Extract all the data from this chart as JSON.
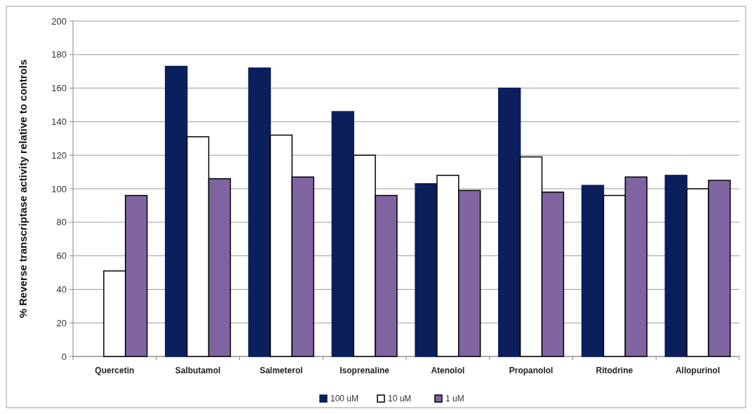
{
  "chart_data": {
    "type": "bar",
    "ylabel": "% Reverse transcriptase activity relative to controls",
    "categories": [
      "Quercetin",
      "Salbutamol",
      "Salmeterol",
      "Isoprenaline",
      "Atenolol",
      "Propanolol",
      "Ritodrine",
      "Allopurinol"
    ],
    "series": [
      {
        "name": "100 uM",
        "color": "#0a1f5c",
        "values": [
          null,
          173,
          172,
          146,
          103,
          160,
          102,
          108
        ]
      },
      {
        "name": "10 uM",
        "color": "#ffffff",
        "values": [
          51,
          131,
          132,
          120,
          108,
          119,
          96,
          100
        ]
      },
      {
        "name": "1 uM",
        "color": "#8064a2",
        "values": [
          96,
          106,
          107,
          96,
          99,
          98,
          107,
          105
        ]
      }
    ],
    "ylim": [
      0,
      200
    ],
    "yticks": [
      0,
      20,
      40,
      60,
      80,
      100,
      120,
      140,
      160,
      180,
      200
    ],
    "grid": "y",
    "legend": "bottom"
  }
}
